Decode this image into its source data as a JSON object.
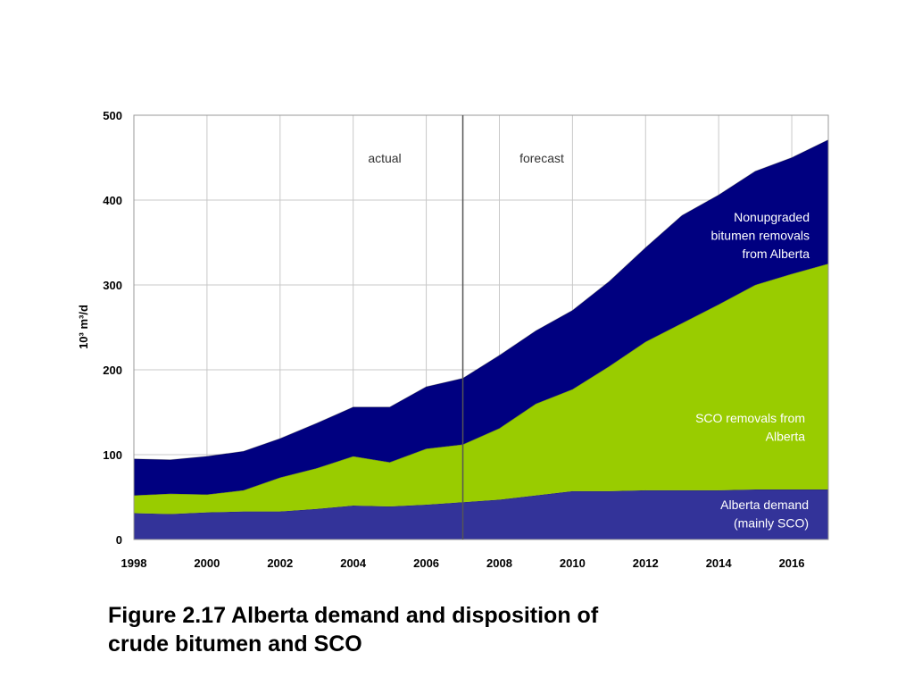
{
  "chart_data": {
    "type": "area",
    "stacked": true,
    "x": [
      1998,
      1999,
      2000,
      2001,
      2002,
      2003,
      2004,
      2005,
      2006,
      2007,
      2008,
      2009,
      2010,
      2011,
      2012,
      2013,
      2014,
      2015,
      2016,
      2017
    ],
    "xlim": [
      1998,
      2017
    ],
    "xticks": [
      "1998",
      "2000",
      "2002",
      "2004",
      "2006",
      "2008",
      "2010",
      "2012",
      "2014",
      "2016"
    ],
    "ylim": [
      0,
      500
    ],
    "yticks": [
      "0",
      "100",
      "200",
      "300",
      "400",
      "500"
    ],
    "ylabel": "10³ m³/d",
    "grid": true,
    "divider_x": 2007,
    "annotations": {
      "actual": "actual",
      "forecast": "forecast"
    },
    "series": [
      {
        "name": "Alberta demand (mainly SCO)",
        "label_lines": [
          "Alberta demand",
          "(mainly SCO)"
        ],
        "color": "#333399",
        "values": [
          31,
          30,
          32,
          33,
          33,
          36,
          40,
          39,
          41,
          44,
          47,
          52,
          57,
          57,
          58,
          58,
          58,
          59,
          59,
          59
        ]
      },
      {
        "name": "SCO removals from Alberta",
        "label_lines": [
          "SCO removals from",
          "Alberta"
        ],
        "color": "#99CC00",
        "values": [
          21,
          24,
          21,
          25,
          40,
          48,
          58,
          52,
          66,
          68,
          84,
          108,
          120,
          147,
          175,
          197,
          219,
          241,
          254,
          266
        ]
      },
      {
        "name": "Nonupgraded bitumen removals from Alberta",
        "label_lines": [
          "Nonupgraded",
          "bitumen removals",
          "from Alberta"
        ],
        "color": "#000080",
        "values": [
          43,
          40,
          45,
          46,
          46,
          53,
          58,
          65,
          73,
          78,
          86,
          86,
          93,
          100,
          111,
          127,
          129,
          134,
          137,
          146
        ]
      }
    ]
  },
  "caption": {
    "line1": "Figure 2.17 Alberta demand and disposition of",
    "line2": "crude bitumen and SCO"
  }
}
